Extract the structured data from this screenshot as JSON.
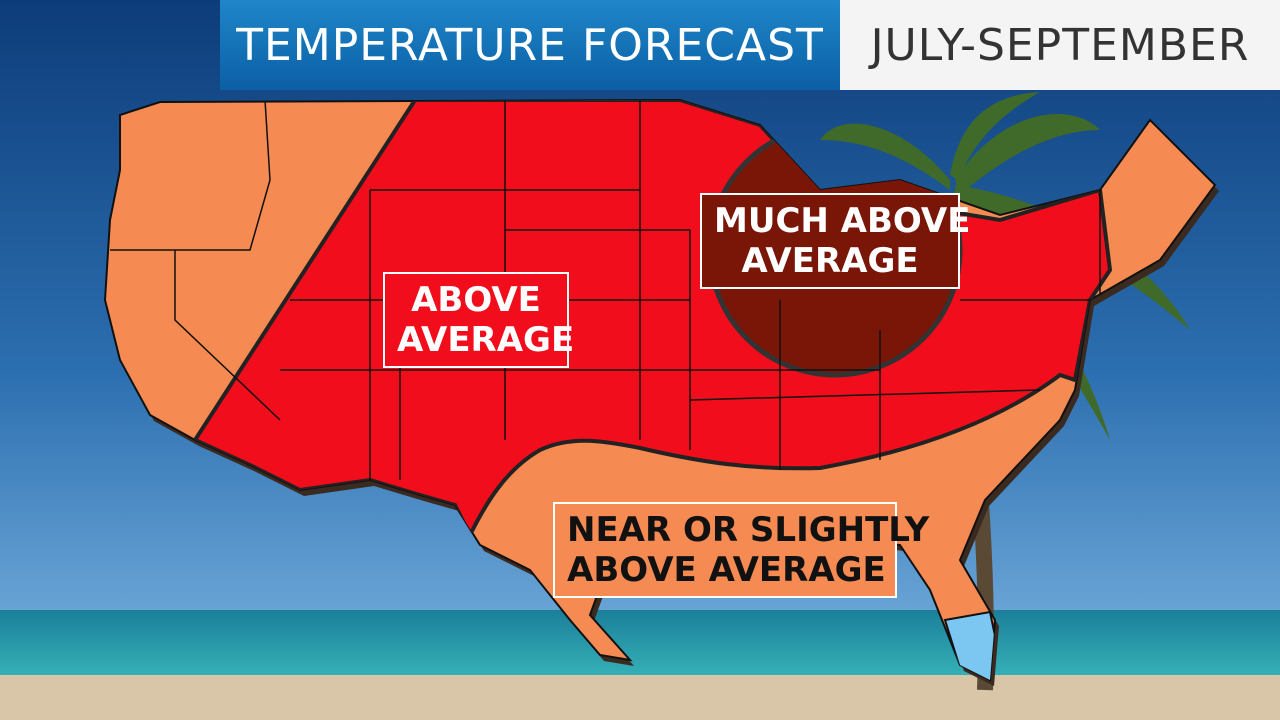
{
  "header": {
    "title": "TEMPERATURE FORECAST",
    "period": "JULY-SEPTEMBER"
  },
  "labels": {
    "much_above": [
      "MUCH ABOVE",
      "AVERAGE"
    ],
    "above": [
      "ABOVE",
      "AVERAGE"
    ],
    "near": [
      "NEAR OR SLIGHTLY",
      "ABOVE AVERAGE"
    ]
  }
}
